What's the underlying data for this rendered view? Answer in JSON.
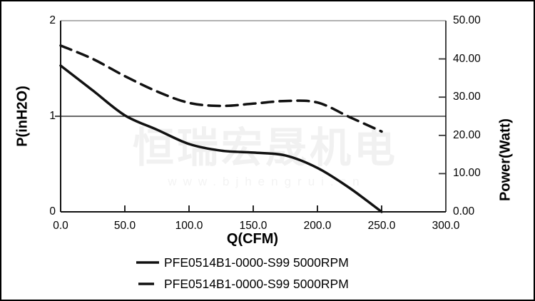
{
  "watermark": {
    "title": "恒瑞宏晟机电",
    "url": "www.bjhengrui.cn"
  },
  "legend": {
    "items": [
      {
        "label": "PFE0514B1-0000-S99 5000RPM",
        "line_style": "solid"
      },
      {
        "label": "PFE0514B1-0000-S99 5000RPM",
        "line_style": "dashed"
      }
    ]
  },
  "chart_data": {
    "type": "line",
    "title": "",
    "xlabel": "Q(CFM)",
    "ylabel_left": "P(inH2O)",
    "ylabel_right": "Power(Watt)",
    "xlim": [
      0,
      300
    ],
    "ylim_left": [
      0,
      2
    ],
    "ylim_right": [
      0,
      50
    ],
    "x_ticks": [
      "0.0",
      "50.0",
      "100.0",
      "150.0",
      "200.0",
      "250.0",
      "300.0"
    ],
    "y_ticks_left": [
      "0",
      "1",
      "2"
    ],
    "y_ticks_right": [
      "0.00",
      "10.00",
      "20.00",
      "30.00",
      "40.00",
      "50.00"
    ],
    "reference_line_left_value": 1,
    "grid": "single horizontal reference line at P=1",
    "legend_position": "bottom",
    "line_color": "#111111",
    "frame_top_color": "#999999",
    "frame_right_color": "#444444",
    "axis_color": "#111111",
    "x": [
      0,
      25,
      50,
      75,
      100,
      125,
      150,
      175,
      200,
      225,
      250
    ],
    "series": [
      {
        "name": "PFE0514B1-0000-S99 5000RPM",
        "axis": "left",
        "unit": "inH2O",
        "line_style": "solid",
        "values": [
          1.53,
          1.27,
          1.01,
          0.86,
          0.71,
          0.64,
          0.62,
          0.59,
          0.46,
          0.25,
          0.0
        ]
      },
      {
        "name": "PFE0514B1-0000-S99 5000RPM",
        "axis": "right",
        "unit": "Watt",
        "line_style": "dashed",
        "values": [
          43.5,
          40.0,
          35.5,
          31.5,
          28.5,
          27.7,
          28.3,
          29.0,
          28.6,
          24.8,
          21.0
        ]
      }
    ]
  }
}
